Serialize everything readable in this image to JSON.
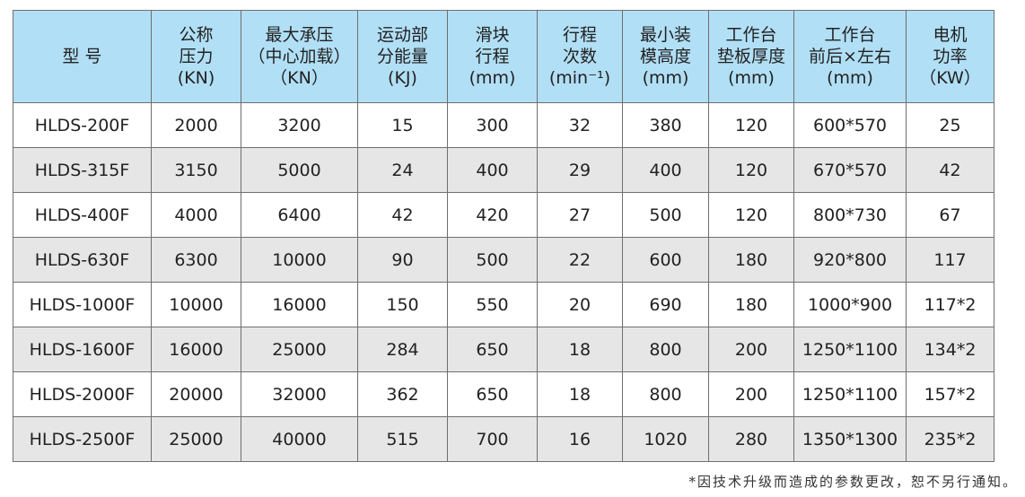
{
  "table": {
    "headers": [
      [
        "型 号"
      ],
      [
        "公称",
        "压力",
        "(KN)"
      ],
      [
        "最大承压",
        "（中心加载）",
        "（KN）"
      ],
      [
        "运动部",
        "分能量",
        "(KJ)"
      ],
      [
        "滑块",
        "行程",
        "(mm)"
      ],
      [
        "行程",
        "次数",
        "(min⁻¹)"
      ],
      [
        "最小装",
        "模高度",
        "(mm)"
      ],
      [
        "工作台",
        "垫板厚度",
        "(mm)"
      ],
      [
        "工作台",
        "前后×左右",
        "(mm)"
      ],
      [
        "电机",
        "功率",
        "（KW）"
      ]
    ],
    "rows": [
      [
        "HLDS-200F",
        "2000",
        "3200",
        "15",
        "300",
        "32",
        "380",
        "120",
        "600*570",
        "25"
      ],
      [
        "HLDS-315F",
        "3150",
        "5000",
        "24",
        "400",
        "29",
        "400",
        "120",
        "670*570",
        "42"
      ],
      [
        "HLDS-400F",
        "4000",
        "6400",
        "42",
        "420",
        "27",
        "500",
        "120",
        "800*730",
        "67"
      ],
      [
        "HLDS-630F",
        "6300",
        "10000",
        "90",
        "500",
        "22",
        "600",
        "180",
        "920*800",
        "117"
      ],
      [
        "HLDS-1000F",
        "10000",
        "16000",
        "150",
        "550",
        "20",
        "690",
        "180",
        "1000*900",
        "117*2"
      ],
      [
        "HLDS-1600F",
        "16000",
        "25000",
        "284",
        "650",
        "18",
        "800",
        "200",
        "1250*1100",
        "134*2"
      ],
      [
        "HLDS-2000F",
        "20000",
        "32000",
        "362",
        "650",
        "18",
        "800",
        "200",
        "1250*1100",
        "157*2"
      ],
      [
        "HLDS-2500F",
        "25000",
        "40000",
        "515",
        "700",
        "16",
        "1020",
        "280",
        "1350*1300",
        "235*2"
      ]
    ]
  },
  "footnote": "*因技术升级而造成的参数更改，恕不另行通知。",
  "colors": {
    "header_bg": "#b1dff5",
    "alt_row_bg": "#e6e6e6"
  }
}
